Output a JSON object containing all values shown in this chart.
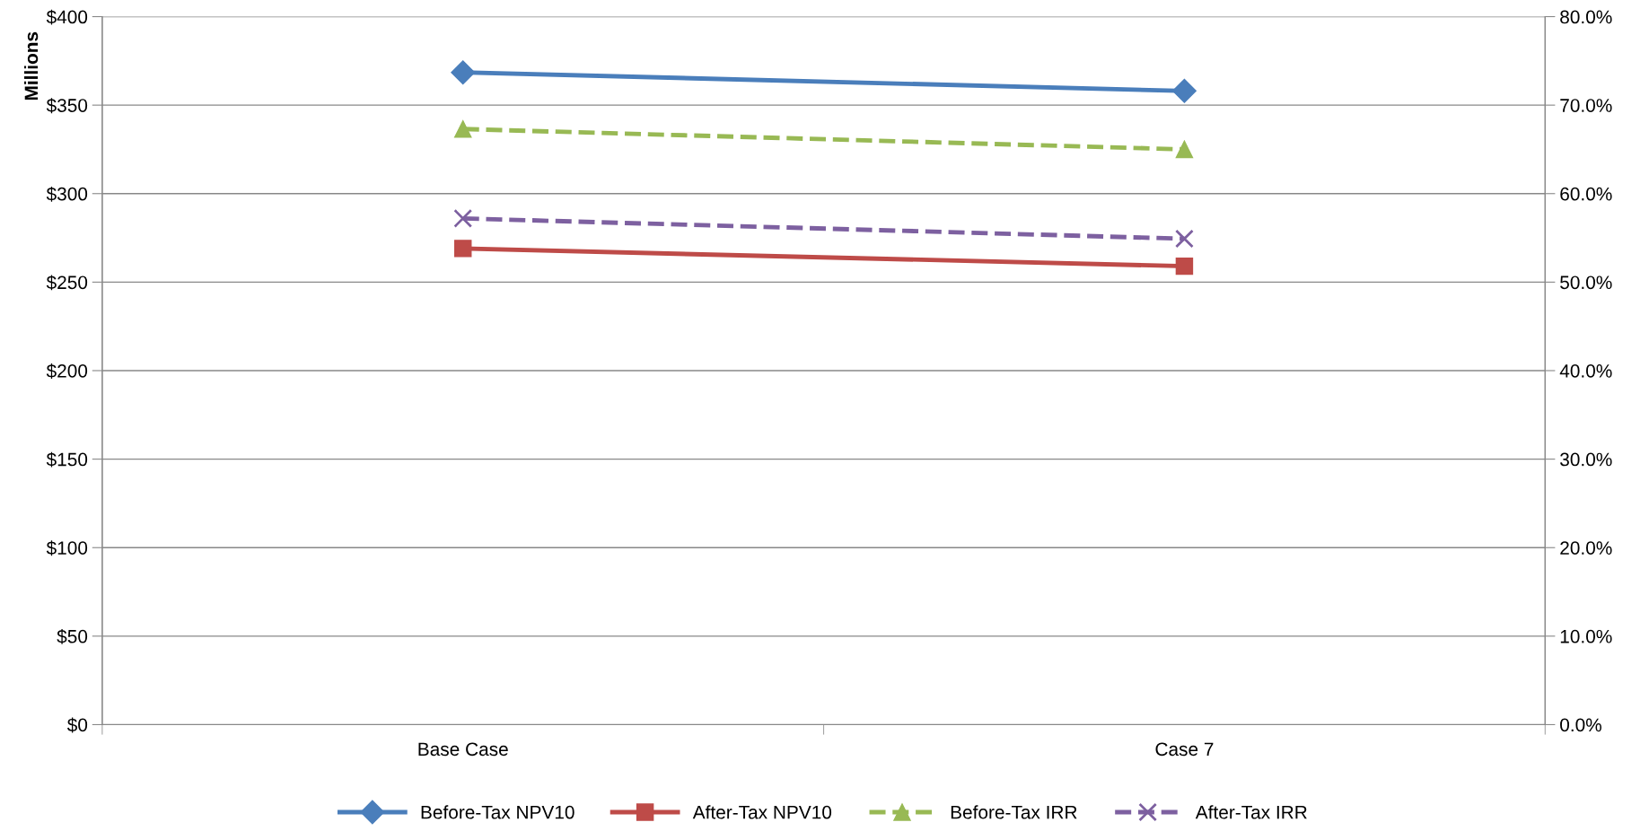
{
  "chart_data": {
    "type": "line",
    "ylabel": "Millions",
    "categories": [
      "Base Case",
      "Case 7"
    ],
    "series": [
      {
        "name": "Before-Tax NPV10",
        "color": "#4a7ebb",
        "values": [
          368.5,
          358
        ],
        "marker": "diamond",
        "line_style": "solid"
      },
      {
        "name": "After-Tax NPV10",
        "color": "#be4b48",
        "values": [
          269,
          259
        ],
        "marker": "square",
        "line_style": "solid"
      },
      {
        "name": "Before-Tax IRR",
        "color": "#98b954",
        "values": [
          67.3,
          65.0
        ],
        "marker": "triangle",
        "line_style": "dashed",
        "axis": "y2"
      },
      {
        "name": "After-Tax IRR",
        "color": "#7d60a0",
        "values": [
          57.2,
          54.9
        ],
        "marker": "cross",
        "line_style": "dashed",
        "axis": "y2"
      }
    ],
    "ylim": [
      0,
      400
    ],
    "yticks": [
      {
        "value": 0,
        "label": "$0"
      },
      {
        "value": 50,
        "label": "$50"
      },
      {
        "value": 100,
        "label": "$100"
      },
      {
        "value": 150,
        "label": "$150"
      },
      {
        "value": 200,
        "label": "$200"
      },
      {
        "value": 250,
        "label": "$250"
      },
      {
        "value": 300,
        "label": "$300"
      },
      {
        "value": 350,
        "label": "$350"
      },
      {
        "value": 400,
        "label": "$400"
      }
    ],
    "y2lim": [
      0,
      80
    ],
    "y2ticks": [
      {
        "value": 0,
        "label": "0.0%"
      },
      {
        "value": 10,
        "label": "10.0%"
      },
      {
        "value": 20,
        "label": "20.0%"
      },
      {
        "value": 30,
        "label": "30.0%"
      },
      {
        "value": 40,
        "label": "40.0%"
      },
      {
        "value": 50,
        "label": "50.0%"
      },
      {
        "value": 60,
        "label": "60.0%"
      },
      {
        "value": 70,
        "label": "70.0%"
      },
      {
        "value": 80,
        "label": "80.0%"
      }
    ],
    "grid": "y",
    "legend": "bottom"
  }
}
